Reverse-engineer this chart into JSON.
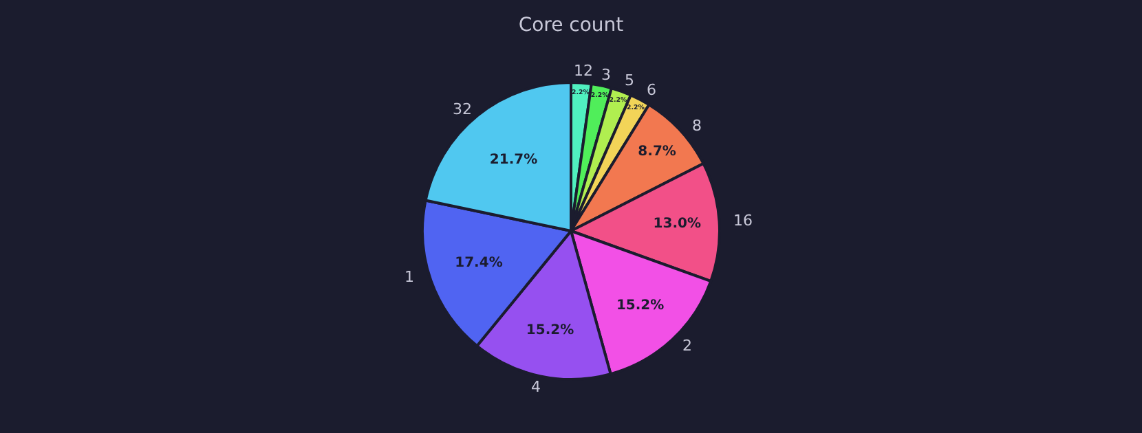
{
  "chart_data": {
    "type": "pie",
    "title": "Core count",
    "categories": [
      "12",
      "3",
      "5",
      "6",
      "8",
      "16",
      "2",
      "4",
      "1",
      "32"
    ],
    "values": [
      2.2,
      2.2,
      2.2,
      2.2,
      8.7,
      13.0,
      15.2,
      15.2,
      17.4,
      21.7
    ],
    "value_labels": [
      "2.2%",
      "2.2%",
      "2.2%",
      "2.2%",
      "8.7%",
      "13.0%",
      "15.2%",
      "15.2%",
      "17.4%",
      "21.7%"
    ],
    "colors": [
      "#50f0c0",
      "#50ee5a",
      "#b0ee50",
      "#f2d458",
      "#f27850",
      "#f25088",
      "#f250e6",
      "#9650f0",
      "#5064f2",
      "#50c8f0"
    ],
    "legend": false
  }
}
